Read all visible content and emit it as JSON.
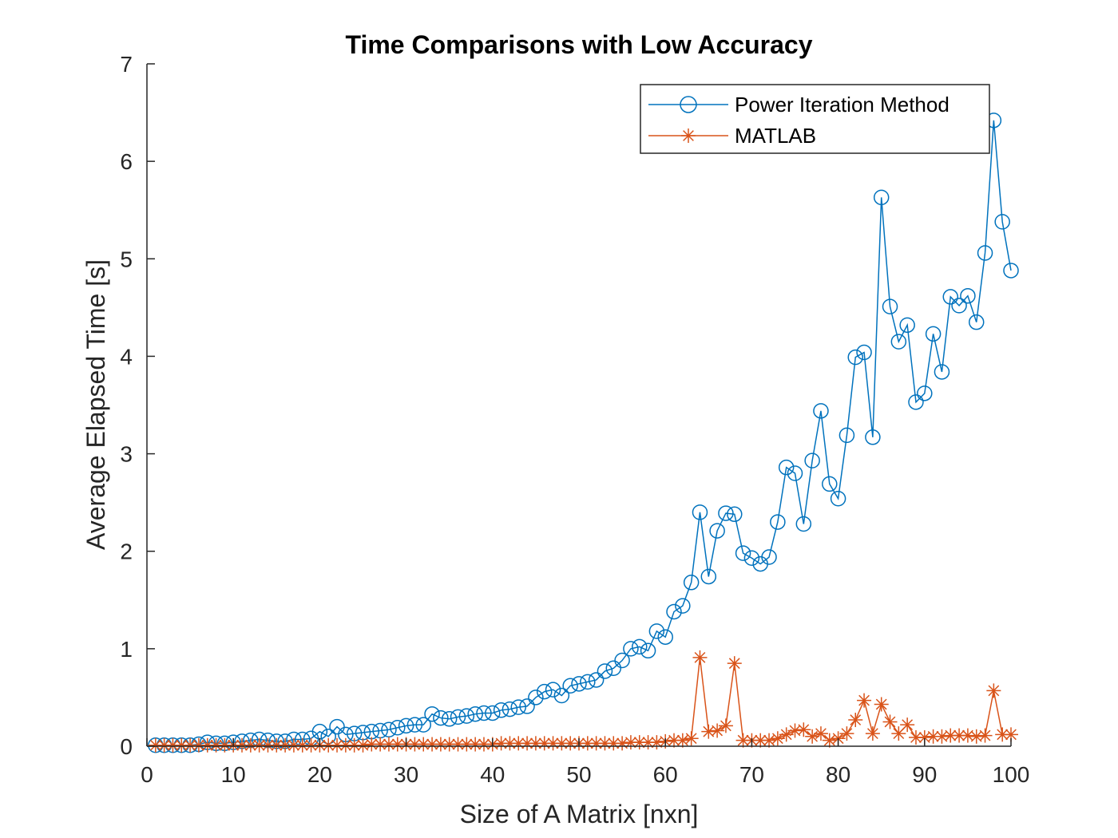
{
  "chart_data": {
    "type": "line",
    "title": "Time Comparisons with Low Accuracy",
    "xlabel": "Size of A Matrix [nxn]",
    "ylabel": "Average Elapsed Time [s]",
    "xlim": [
      0,
      100
    ],
    "ylim": [
      0,
      7
    ],
    "xticks": [
      "0",
      "10",
      "20",
      "30",
      "40",
      "50",
      "60",
      "70",
      "80",
      "90",
      "100"
    ],
    "yticks": [
      "0",
      "1",
      "2",
      "3",
      "4",
      "5",
      "6",
      "7"
    ],
    "grid": false,
    "legend_position": "top-right",
    "x": [
      1,
      2,
      3,
      4,
      5,
      6,
      7,
      8,
      9,
      10,
      11,
      12,
      13,
      14,
      15,
      16,
      17,
      18,
      19,
      20,
      21,
      22,
      23,
      24,
      25,
      26,
      27,
      28,
      29,
      30,
      31,
      32,
      33,
      34,
      35,
      36,
      37,
      38,
      39,
      40,
      41,
      42,
      43,
      44,
      45,
      46,
      47,
      48,
      49,
      50,
      51,
      52,
      53,
      54,
      55,
      56,
      57,
      58,
      59,
      60,
      61,
      62,
      63,
      64,
      65,
      66,
      67,
      68,
      69,
      70,
      71,
      72,
      73,
      74,
      75,
      76,
      77,
      78,
      79,
      80,
      81,
      82,
      83,
      84,
      85,
      86,
      87,
      88,
      89,
      90,
      91,
      92,
      93,
      94,
      95,
      96,
      97,
      98,
      99,
      100
    ],
    "series": [
      {
        "name": "Power Iteration Method",
        "color": "#0072BD",
        "marker": "circle",
        "values": [
          0.01,
          0.01,
          0.01,
          0.01,
          0.01,
          0.02,
          0.04,
          0.03,
          0.03,
          0.04,
          0.05,
          0.06,
          0.07,
          0.06,
          0.05,
          0.05,
          0.07,
          0.07,
          0.08,
          0.15,
          0.1,
          0.2,
          0.12,
          0.13,
          0.14,
          0.15,
          0.16,
          0.17,
          0.19,
          0.21,
          0.22,
          0.22,
          0.33,
          0.29,
          0.28,
          0.3,
          0.31,
          0.33,
          0.34,
          0.34,
          0.37,
          0.38,
          0.4,
          0.41,
          0.5,
          0.56,
          0.58,
          0.52,
          0.62,
          0.64,
          0.66,
          0.68,
          0.77,
          0.8,
          0.88,
          1.0,
          1.02,
          0.98,
          1.18,
          1.12,
          1.38,
          1.44,
          1.68,
          2.4,
          1.74,
          2.21,
          2.39,
          2.38,
          1.98,
          1.93,
          1.87,
          1.94,
          2.3,
          2.86,
          2.8,
          2.28,
          2.93,
          3.44,
          2.69,
          2.54,
          3.19,
          3.99,
          4.04,
          3.17,
          5.63,
          4.51,
          4.15,
          4.32,
          3.53,
          3.62,
          4.23,
          3.84,
          4.61,
          4.52,
          4.62,
          4.35,
          5.06,
          6.42,
          5.38,
          4.88
        ]
      },
      {
        "name": "MATLAB",
        "color": "#D95319",
        "marker": "asterisk",
        "values": [
          0.01,
          0.01,
          0.01,
          0.01,
          0.01,
          0.01,
          0.01,
          0.01,
          0.01,
          0.01,
          0.01,
          0.01,
          0.01,
          0.01,
          0.01,
          0.01,
          0.01,
          0.01,
          0.01,
          0.01,
          0.01,
          0.01,
          0.01,
          0.01,
          0.01,
          0.02,
          0.02,
          0.02,
          0.02,
          0.02,
          0.02,
          0.02,
          0.02,
          0.02,
          0.02,
          0.02,
          0.02,
          0.02,
          0.02,
          0.02,
          0.03,
          0.03,
          0.03,
          0.03,
          0.03,
          0.03,
          0.03,
          0.03,
          0.03,
          0.03,
          0.03,
          0.03,
          0.03,
          0.03,
          0.03,
          0.04,
          0.04,
          0.04,
          0.04,
          0.05,
          0.06,
          0.06,
          0.08,
          0.91,
          0.15,
          0.16,
          0.21,
          0.85,
          0.06,
          0.06,
          0.06,
          0.06,
          0.08,
          0.12,
          0.16,
          0.17,
          0.1,
          0.13,
          0.06,
          0.08,
          0.13,
          0.27,
          0.47,
          0.13,
          0.43,
          0.25,
          0.13,
          0.22,
          0.09,
          0.09,
          0.1,
          0.1,
          0.11,
          0.11,
          0.11,
          0.1,
          0.11,
          0.57,
          0.12,
          0.12
        ]
      }
    ]
  }
}
